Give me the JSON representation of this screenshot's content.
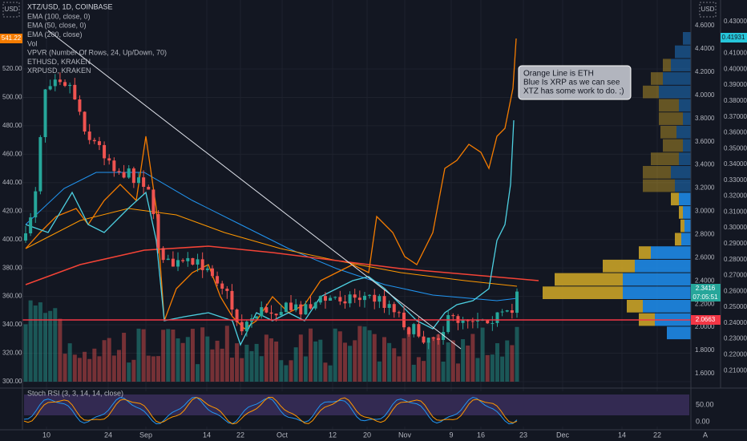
{
  "header": {
    "symbol": "XTZ/USD, 1D, COINBASE",
    "currency": "USD"
  },
  "legend": [
    "EMA (100, close, 0)",
    "EMA (50, close, 0)",
    "EMA (200, close)",
    "Vol",
    "VPVR (Number Of Rows, 24, Up/Down, 70)",
    "ETHUSD, KRAKEN",
    "XRPUSD, KRAKEN"
  ],
  "left_axis": [
    "520.00",
    "500.00",
    "480.00",
    "460.00",
    "440.00",
    "420.00",
    "400.00",
    "380.00",
    "360.00",
    "340.00",
    "320.00",
    "300.00"
  ],
  "price_axis": [
    "4.6000",
    "4.4000",
    "4.2000",
    "4.0000",
    "3.8000",
    "3.6000",
    "3.4000",
    "3.2000",
    "3.0000",
    "2.8000",
    "2.6000",
    "2.4000",
    "2.2000",
    "2.0000",
    "1.8000",
    "1.6000"
  ],
  "ratio_axis": [
    "0.43000",
    "0.41000",
    "0.40000",
    "0.39000",
    "0.38000",
    "0.37000",
    "0.36000",
    "0.35000",
    "0.34000",
    "0.33000",
    "0.32000",
    "0.31000",
    "0.30000",
    "0.29000",
    "0.28000",
    "0.27000",
    "0.26000",
    "0.25000",
    "0.24000",
    "0.23000",
    "0.22000",
    "0.21000"
  ],
  "price_tags": {
    "left": "541.22",
    "ratio": "0.41931",
    "last": "2.3416",
    "countdown": "07:05:51",
    "line": "2.0663"
  },
  "time_axis": [
    "10",
    "24",
    "Sep",
    "14",
    "22",
    "Oct",
    "12",
    "20",
    "Nov",
    "9",
    "16",
    "23",
    "Dec",
    "14",
    "22"
  ],
  "annotation": [
    "Orange Line is ETH",
    "Blue Is XRP as we can see",
    "XTZ has some work to do. ;)"
  ],
  "stoch": {
    "label": "Stoch RSI (3, 3, 14, 14, close)",
    "ticks": [
      "50.00",
      "0.00"
    ]
  },
  "footer": "A"
}
